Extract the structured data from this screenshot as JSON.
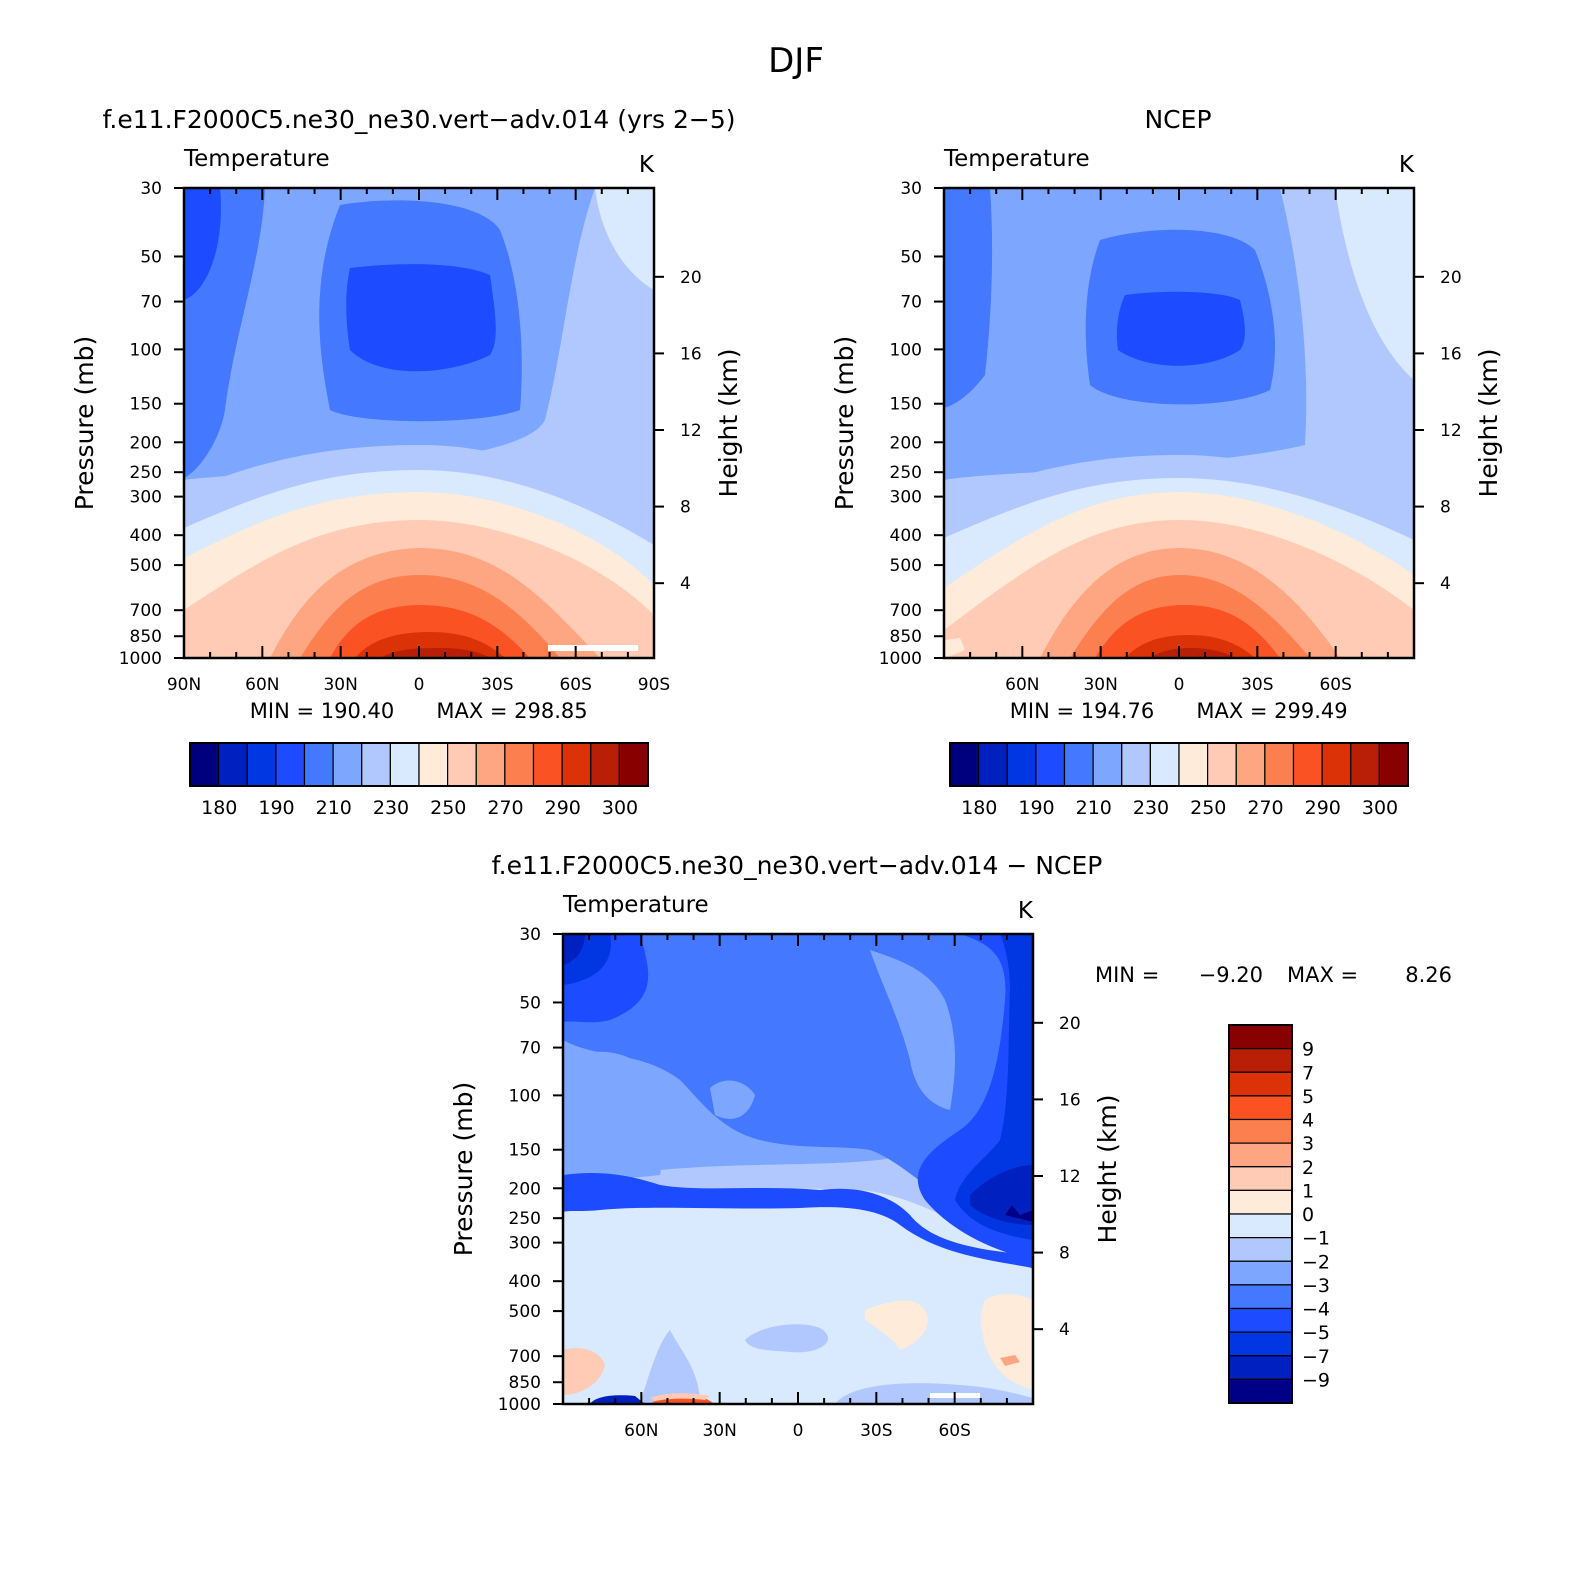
{
  "figure": {
    "title": "DJF"
  },
  "colors": {
    "temperature_fill": [
      "#00007f",
      "#0021bf",
      "#0037e3",
      "#1d4bff",
      "#4378ff",
      "#7da7ff",
      "#b1c8fe",
      "#d9e9fe",
      "#ffebd9",
      "#ffcbb4",
      "#fea681",
      "#fc7f4f",
      "#fa5223",
      "#dc3208",
      "#b91f06",
      "#880000"
    ],
    "difference_fill": [
      "#000086",
      "#0021bf",
      "#0037e3",
      "#1d4bff",
      "#4378ff",
      "#7da7ff",
      "#b1c8fe",
      "#d9e9fe",
      "#ffebd9",
      "#ffcbb4",
      "#fea681",
      "#fc7f4f",
      "#fa5223",
      "#dc3208",
      "#b91f06",
      "#880000"
    ]
  },
  "chart_data": [
    {
      "type": "heatmap",
      "title": "f.e11.F2000C5.ne30_ne30.vert−adv.014 (yrs 2−5)",
      "left_label": "Temperature",
      "right_label": "K",
      "ylabel": "Pressure (mb)",
      "ylabel_right": "Height (km)",
      "x_ticks": [
        "90N",
        "60N",
        "30N",
        "0",
        "30S",
        "60S",
        "90S"
      ],
      "x_tick_values": [
        90,
        60,
        30,
        0,
        -30,
        -60,
        -90
      ],
      "y_ticks": [
        "30",
        "50",
        "70",
        "100",
        "150",
        "200",
        "250",
        "300",
        "400",
        "500",
        "700",
        "850",
        "1000"
      ],
      "y_tick_values": [
        30,
        50,
        70,
        100,
        150,
        200,
        250,
        300,
        400,
        500,
        700,
        850,
        1000
      ],
      "height_ticks": [
        "4",
        "8",
        "12",
        "16",
        "20"
      ],
      "height_tick_values": [
        4,
        8,
        12,
        16,
        20
      ],
      "xlim": [
        90,
        -90
      ],
      "ylim": [
        1000,
        30
      ],
      "log_y": true,
      "stats": {
        "min": "MIN = 190.40",
        "max": "MAX = 298.85"
      },
      "colorbar": {
        "labels": [
          "180",
          "190",
          "210",
          "230",
          "250",
          "270",
          "290",
          "300"
        ],
        "levels": [
          180,
          190,
          200,
          210,
          220,
          230,
          240,
          250,
          260,
          270,
          280,
          290,
          295,
          300,
          305
        ],
        "bins": 16
      }
    },
    {
      "type": "heatmap",
      "title": "NCEP",
      "left_label": "Temperature",
      "right_label": "K",
      "ylabel": "Pressure (mb)",
      "ylabel_right": "Height (km)",
      "x_ticks": [
        "60N",
        "30N",
        "0",
        "30S",
        "60S"
      ],
      "x_tick_values": [
        60,
        30,
        0,
        -30,
        -60
      ],
      "y_ticks": [
        "30",
        "50",
        "70",
        "100",
        "150",
        "200",
        "250",
        "300",
        "400",
        "500",
        "700",
        "850",
        "1000"
      ],
      "y_tick_values": [
        30,
        50,
        70,
        100,
        150,
        200,
        250,
        300,
        400,
        500,
        700,
        850,
        1000
      ],
      "height_ticks": [
        "4",
        "8",
        "12",
        "16",
        "20"
      ],
      "height_tick_values": [
        4,
        8,
        12,
        16,
        20
      ],
      "xlim": [
        90,
        -90
      ],
      "ylim": [
        1000,
        30
      ],
      "log_y": true,
      "stats": {
        "min": "MIN = 194.76",
        "max": "MAX = 299.49"
      },
      "colorbar": {
        "labels": [
          "180",
          "190",
          "210",
          "230",
          "250",
          "270",
          "290",
          "300"
        ],
        "levels": [
          180,
          190,
          200,
          210,
          220,
          230,
          240,
          250,
          260,
          270,
          280,
          290,
          295,
          300,
          305
        ],
        "bins": 16
      }
    },
    {
      "type": "heatmap",
      "title": "f.e11.F2000C5.ne30_ne30.vert−adv.014 − NCEP",
      "left_label": "Temperature",
      "right_label": "K",
      "ylabel": "Pressure (mb)",
      "ylabel_right": "Height (km)",
      "x_ticks": [
        "60N",
        "30N",
        "0",
        "30S",
        "60S"
      ],
      "x_tick_values": [
        60,
        30,
        0,
        -30,
        -60
      ],
      "y_ticks": [
        "30",
        "50",
        "70",
        "100",
        "150",
        "200",
        "250",
        "300",
        "400",
        "500",
        "700",
        "850",
        "1000"
      ],
      "y_tick_values": [
        30,
        50,
        70,
        100,
        150,
        200,
        250,
        300,
        400,
        500,
        700,
        850,
        1000
      ],
      "height_ticks": [
        "4",
        "8",
        "12",
        "16",
        "20"
      ],
      "height_tick_values": [
        4,
        8,
        12,
        16,
        20
      ],
      "xlim": [
        90,
        -90
      ],
      "ylim": [
        1000,
        30
      ],
      "log_y": true,
      "stats": {
        "min_label": "MIN =",
        "min_value": "−9.20",
        "max_label": "MAX =",
        "max_value": "8.26"
      },
      "colorbar": {
        "labels": [
          "9",
          "7",
          "5",
          "4",
          "3",
          "2",
          "1",
          "0",
          "−1",
          "−2",
          "−3",
          "−4",
          "−5",
          "−7",
          "−9"
        ],
        "levels": [
          9,
          7,
          5,
          4,
          3,
          2,
          1,
          0,
          -1,
          -2,
          -3,
          -4,
          -5,
          -7,
          -9
        ],
        "bins": 16
      }
    }
  ]
}
